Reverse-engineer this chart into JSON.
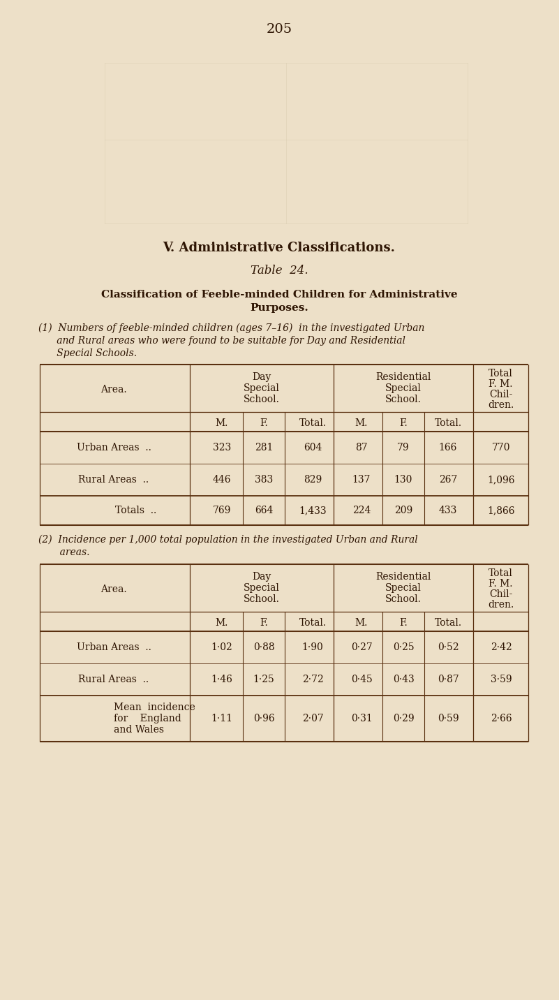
{
  "bg_color": "#ede0c8",
  "text_color": "#2e1503",
  "page_number": "205",
  "section_title": "V. Administrative Classifications.",
  "table_title": "Table  24.",
  "caption_line1": "Classification of Feeble-minded Children for Administrative",
  "caption_line2": "Purposes.",
  "sec1_line1": "(1)  Numbers of feeble-minded children (ages 7–16)  in the investigated Urban",
  "sec1_line2": "      and Rural areas who were found to be suitable for Day and Residential",
  "sec1_line3": "      Special Schools.",
  "sec2_line1": "(2)  Incidence per 1,000 total population in the investigated Urban and Rural",
  "sec2_line2": "       areas.",
  "t1_urban": [
    "323",
    "281",
    "604",
    "87",
    "79",
    "166",
    "770"
  ],
  "t1_rural": [
    "446",
    "383",
    "829",
    "137",
    "130",
    "267",
    "1,096"
  ],
  "t1_totals": [
    "769",
    "664",
    "1,433",
    "224",
    "209",
    "433",
    "1,866"
  ],
  "t2_urban": [
    "1·02",
    "0·88",
    "1·90",
    "0·27",
    "0·25",
    "0·52",
    "2·42"
  ],
  "t2_rural": [
    "1·46",
    "1·25",
    "2·72",
    "0·45",
    "0·43",
    "0·87",
    "3·59"
  ],
  "t2_mean": [
    "1·11",
    "0·96",
    "2·07",
    "0·31",
    "0·29",
    "0·59",
    "2·66"
  ],
  "line_color": "#5a3010"
}
